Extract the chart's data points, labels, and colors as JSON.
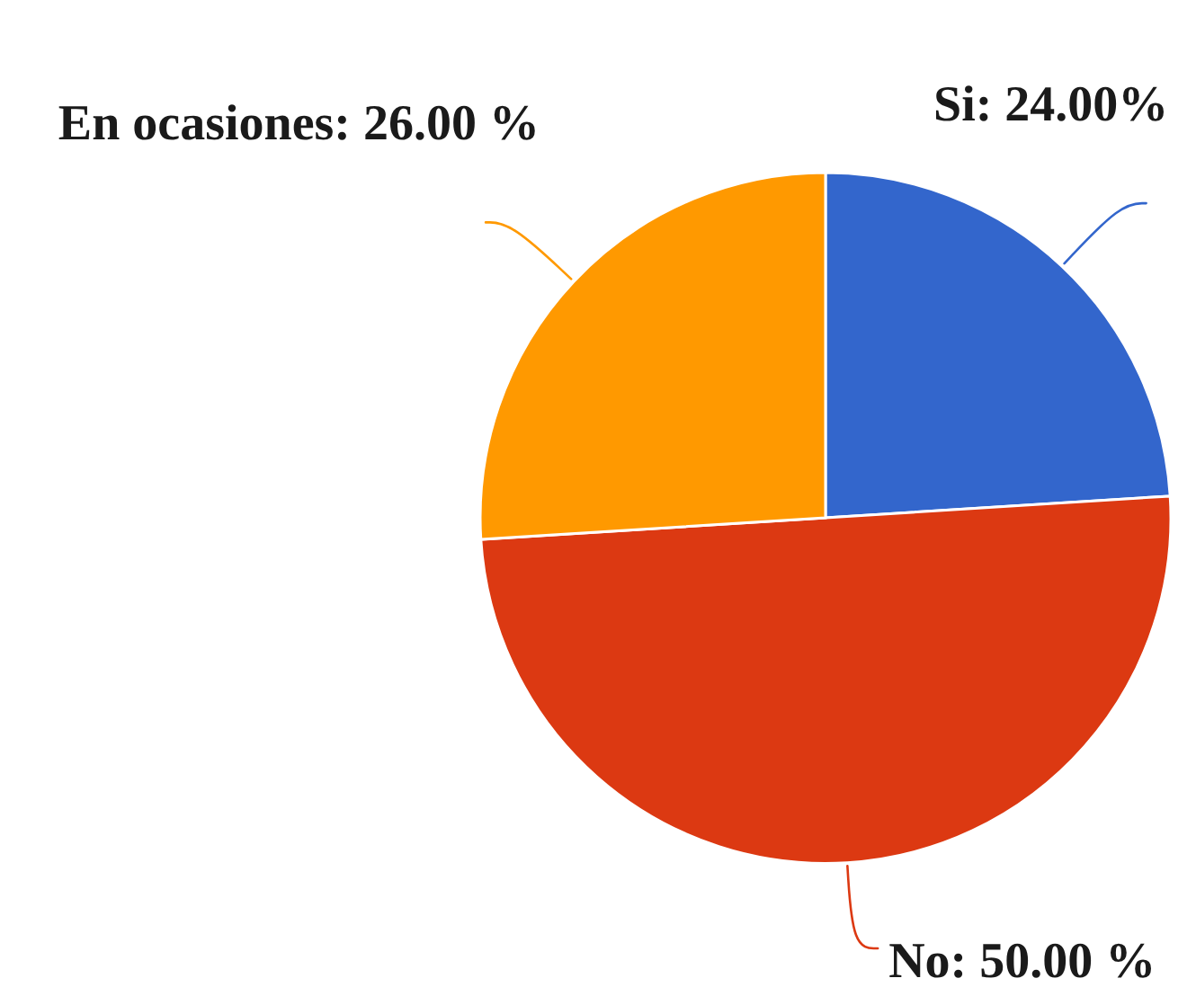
{
  "chart_data": {
    "type": "pie",
    "categories": [
      "Si",
      "No",
      "En ocasiones"
    ],
    "values": [
      24,
      50,
      26
    ],
    "colors": [
      "#3366cc",
      "#dc3912",
      "#ff9900"
    ],
    "value_labels": [
      "24.00%",
      "50.00 %",
      "26.00 %"
    ]
  }
}
